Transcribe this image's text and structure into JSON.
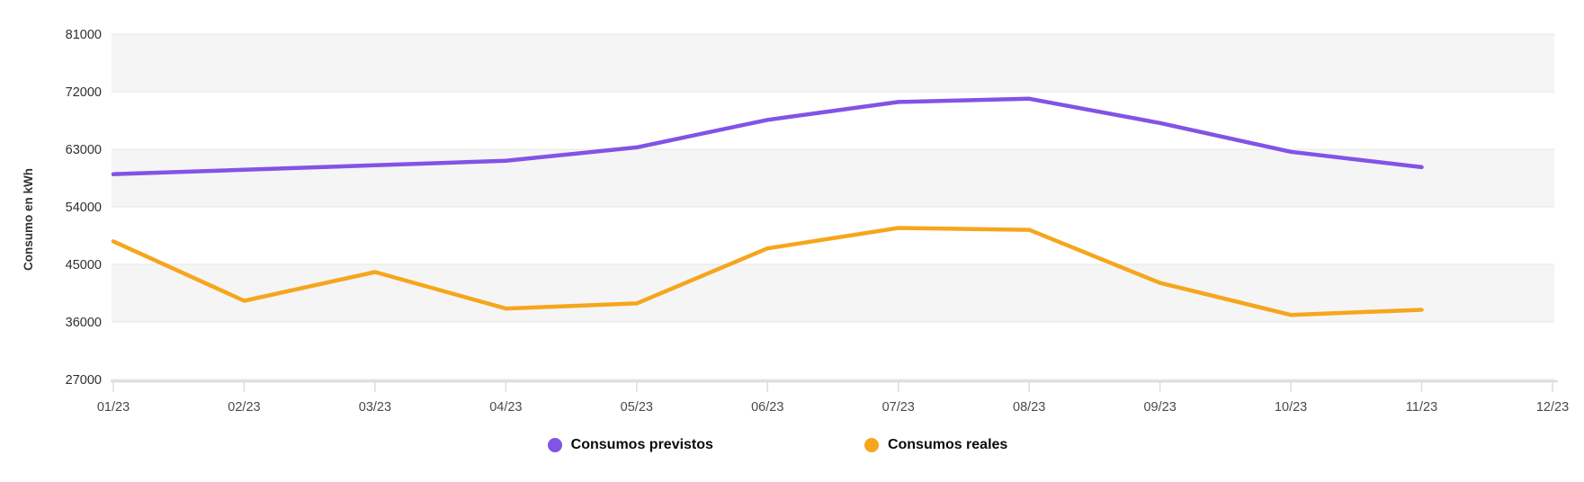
{
  "chart_data": {
    "type": "line",
    "title": "",
    "xlabel": "",
    "ylabel": "Consumo en kWh",
    "x_labels": [
      "01/23",
      "02/23",
      "03/23",
      "04/23",
      "05/23",
      "06/23",
      "07/23",
      "08/23",
      "09/23",
      "10/23",
      "11/23",
      "12/23"
    ],
    "y_ticks": [
      27000,
      36000,
      45000,
      54000,
      63000,
      72000,
      81000
    ],
    "ylim": [
      27000,
      81000
    ],
    "grid": "horizontal gridlines with alternating light-gray bands",
    "shaded_bands": [
      [
        72000,
        81000
      ],
      [
        54000,
        63000
      ],
      [
        36000,
        45000
      ]
    ],
    "legend_position": "bottom",
    "series": [
      {
        "name": "Consumos previstos",
        "color": "#8253e6",
        "values": [
          59100,
          59800,
          60500,
          61200,
          63300,
          67600,
          70400,
          70900,
          67100,
          62600,
          60200,
          null
        ]
      },
      {
        "name": "Consumos reales",
        "color": "#f6a61d",
        "values": [
          48600,
          39300,
          43800,
          38100,
          38900,
          47500,
          50700,
          50400,
          42100,
          37100,
          37900,
          null
        ]
      }
    ],
    "style": {
      "band_fill": "#f5f5f5",
      "gridline_color": "#e9e9e9",
      "axis_line_color": "#dcdcdc",
      "y_tick_label_color": "#2f2f2f",
      "x_tick_label_color": "#4a4a4a",
      "axis_title_color": "#333333",
      "line_width": 4.5
    }
  }
}
